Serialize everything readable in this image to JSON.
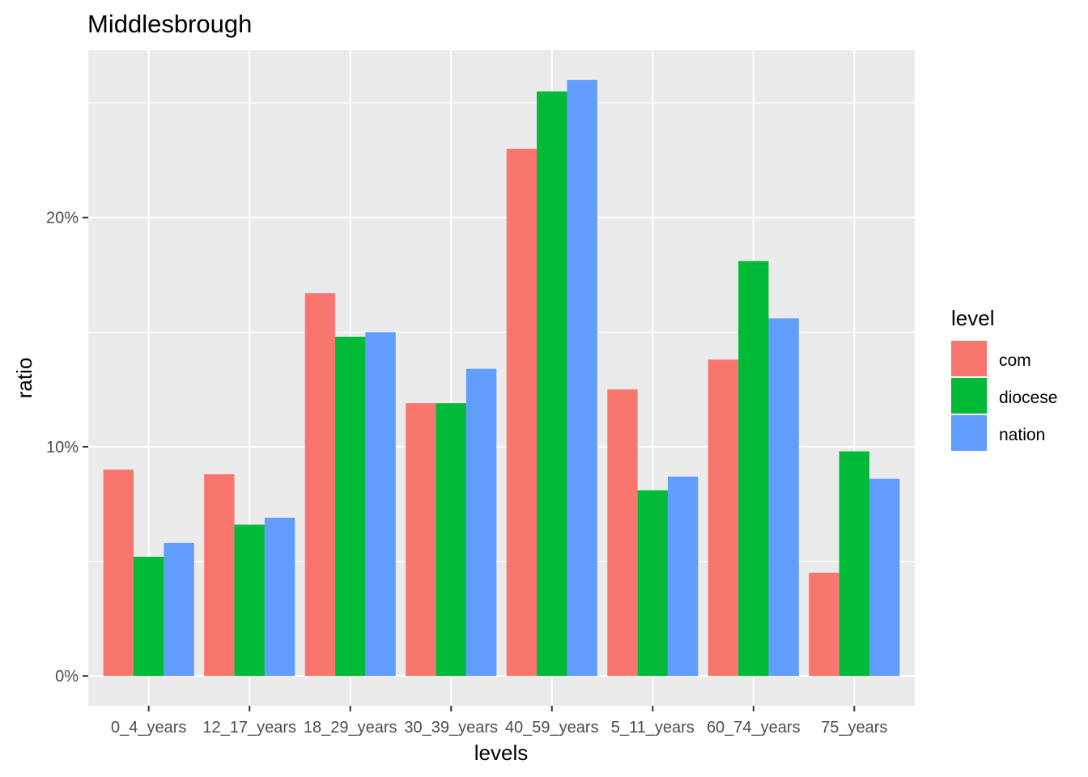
{
  "chart_data": {
    "type": "bar",
    "title": "Middlesbrough",
    "xlabel": "levels",
    "ylabel": "ratio",
    "categories": [
      "0_4_years",
      "12_17_years",
      "18_29_years",
      "30_39_years",
      "40_59_years",
      "5_11_years",
      "60_74_years",
      "75_years"
    ],
    "series": [
      {
        "name": "com",
        "color": "#F8766D",
        "values": [
          9.0,
          8.8,
          16.7,
          11.9,
          23.0,
          12.5,
          13.8,
          4.5
        ]
      },
      {
        "name": "diocese",
        "color": "#00BA38",
        "values": [
          5.2,
          6.6,
          14.8,
          11.9,
          25.5,
          8.1,
          18.1,
          9.8
        ]
      },
      {
        "name": "nation",
        "color": "#619CFF",
        "values": [
          5.8,
          6.9,
          15.0,
          13.4,
          26.0,
          8.7,
          15.6,
          8.6
        ]
      }
    ],
    "yticks": [
      0,
      10,
      20
    ],
    "ytick_labels": [
      "0%",
      "10%",
      "20%"
    ],
    "ylim": [
      -1.3,
      27.3
    ],
    "grid": true,
    "legend_title": "level",
    "legend_position": "right",
    "panel_background": "#EBEBEB",
    "grid_color": "#FFFFFF"
  }
}
